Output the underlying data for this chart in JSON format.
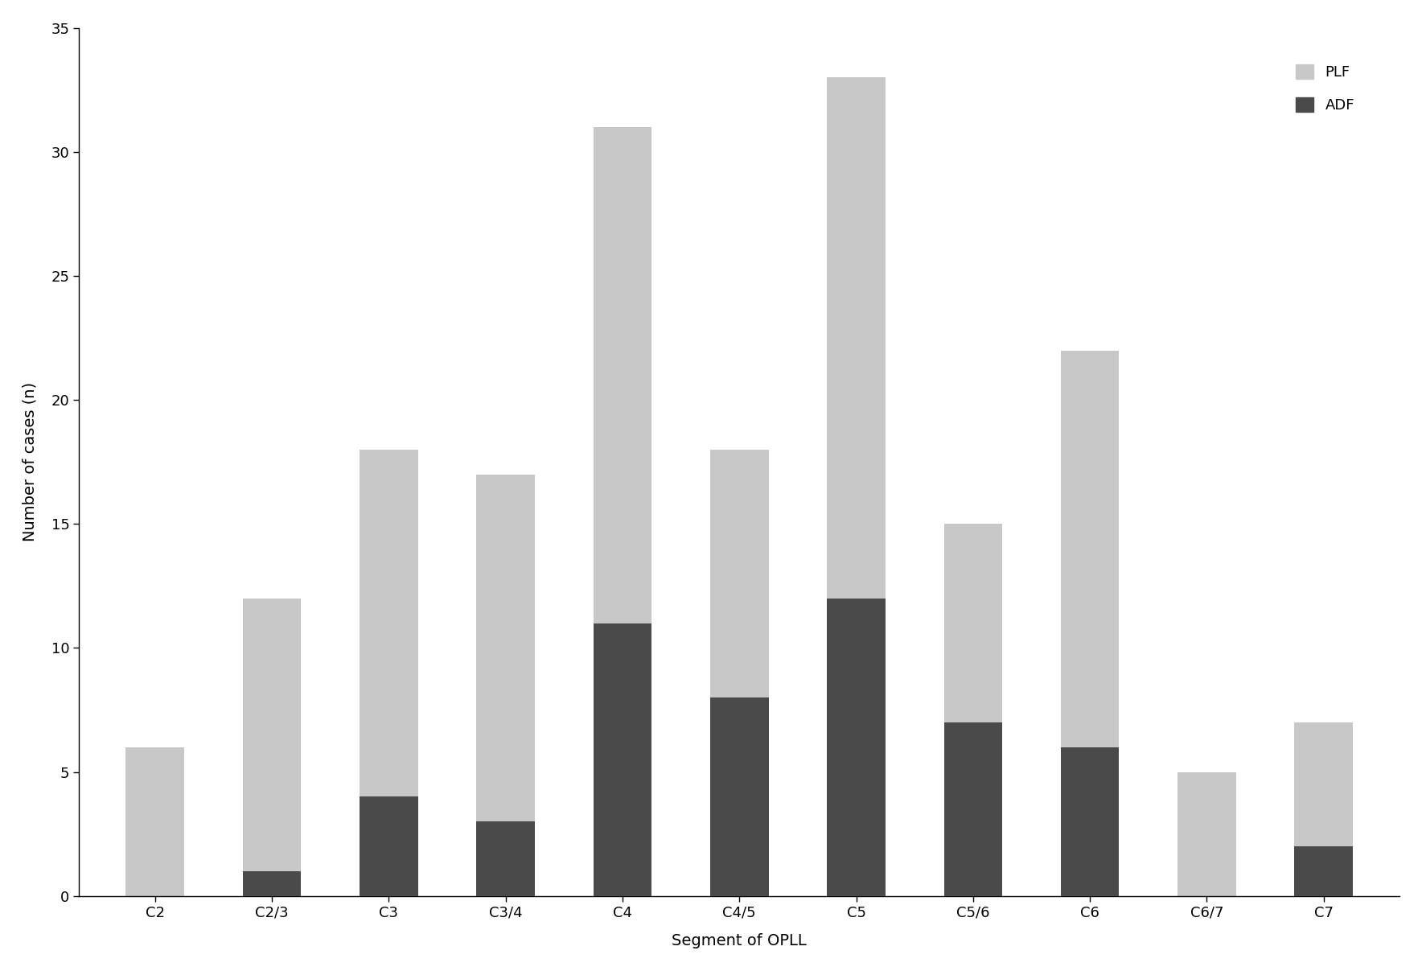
{
  "categories": [
    "C2",
    "C2/3",
    "C3",
    "C3/4",
    "C4",
    "C4/5",
    "C5",
    "C5/6",
    "C6",
    "C6/7",
    "C7"
  ],
  "PLF_total": [
    6,
    12,
    18,
    17,
    31,
    18,
    33,
    15,
    22,
    5,
    7
  ],
  "ADF_values": [
    0,
    1,
    4,
    3,
    11,
    8,
    12,
    7,
    6,
    0,
    2
  ],
  "PLF_color": "#c8c8c8",
  "ADF_color": "#4a4a4a",
  "xlabel": "Segment of OPLL",
  "ylabel": "Number of cases (n)",
  "ylim": [
    0,
    35
  ],
  "yticks": [
    0,
    5,
    10,
    15,
    20,
    25,
    30,
    35
  ],
  "bar_width": 0.5,
  "legend_PLF": "PLF",
  "legend_ADF": "ADF",
  "background_color": "#ffffff",
  "axis_fontsize": 14,
  "tick_fontsize": 13,
  "legend_fontsize": 13
}
